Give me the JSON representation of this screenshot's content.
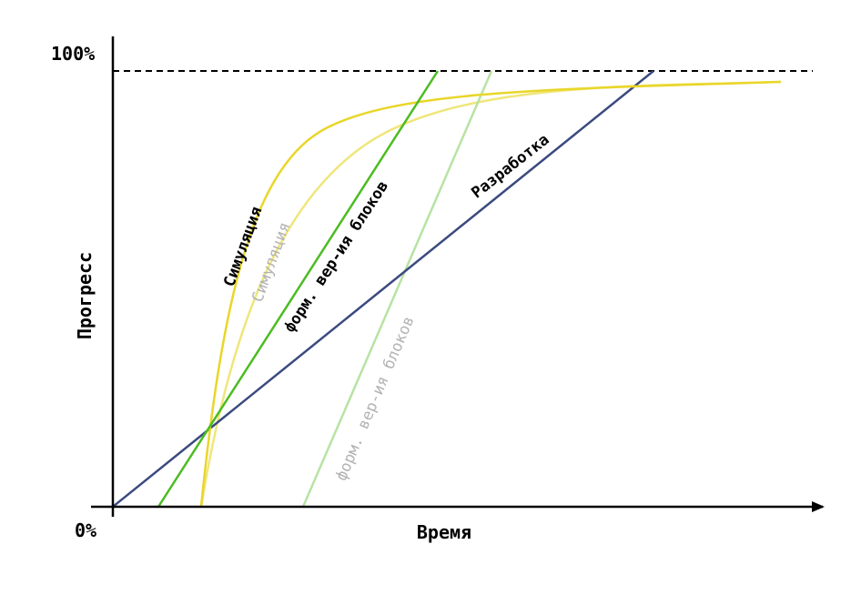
{
  "axes": {
    "y_top_label": "100%",
    "y_bottom_label": "0%",
    "y_title": "Прогресс",
    "x_title": "Время"
  },
  "curves": [
    {
      "key": "sim_bright",
      "label": "Симуляция",
      "color": "#e9d62a",
      "label_color": "#000000"
    },
    {
      "key": "sim_faint",
      "label": "Симуляция",
      "color": "#efe67a",
      "label_color": "#b3b3b3"
    },
    {
      "key": "fv_bright",
      "label": "форм. вер-ия блоков",
      "color": "#4cbc22",
      "label_color": "#000000"
    },
    {
      "key": "fv_faint",
      "label": "форм. вер-ия блоков",
      "color": "#b7e3a3",
      "label_color": "#b3b3b3"
    },
    {
      "key": "dev",
      "label": "Разработка",
      "color": "#3b4a7f",
      "label_color": "#000000"
    }
  ]
}
